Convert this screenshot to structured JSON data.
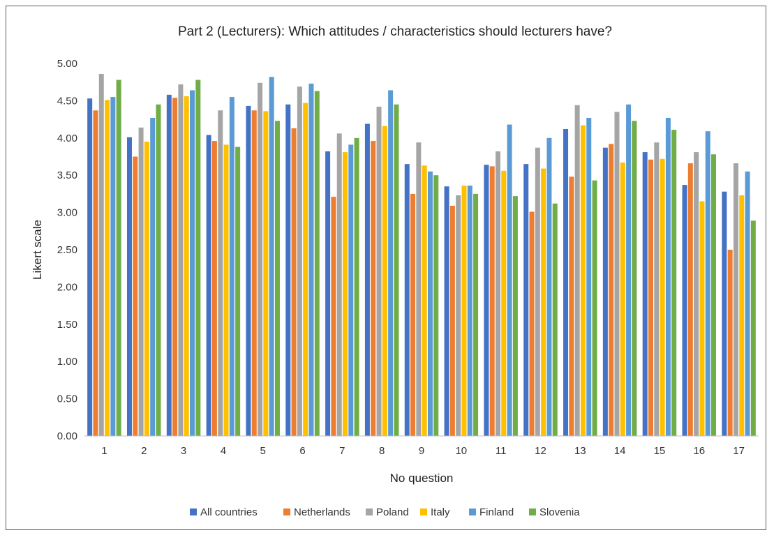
{
  "chart_data": {
    "type": "bar",
    "title": "Part 2 (Lecturers): Which attitudes / characteristics should lecturers have?",
    "xlabel": "No question",
    "ylabel": "Likert scale",
    "ylim": [
      0,
      5
    ],
    "y_ticks": [
      "0.00",
      "0.50",
      "1.00",
      "1.50",
      "2.00",
      "2.50",
      "3.00",
      "3.50",
      "4.00",
      "4.50",
      "5.00"
    ],
    "grid": false,
    "legend_position": "bottom",
    "categories": [
      "1",
      "2",
      "3",
      "4",
      "5",
      "6",
      "7",
      "8",
      "9",
      "10",
      "11",
      "12",
      "13",
      "14",
      "15",
      "16",
      "17"
    ],
    "series": [
      {
        "name": "All countries",
        "color": "#4472C4",
        "values": [
          4.53,
          4.01,
          4.58,
          4.04,
          4.43,
          4.45,
          3.82,
          4.19,
          3.65,
          3.35,
          3.64,
          3.65,
          4.12,
          3.87,
          3.81,
          3.37,
          3.28
        ]
      },
      {
        "name": "Netherlands",
        "color": "#ED7D31",
        "values": [
          4.37,
          3.75,
          4.54,
          3.96,
          4.37,
          4.13,
          3.21,
          3.96,
          3.25,
          3.09,
          3.62,
          3.01,
          3.48,
          3.92,
          3.71,
          3.66,
          2.5
        ]
      },
      {
        "name": "Poland",
        "color": "#A5A5A5",
        "values": [
          4.86,
          4.14,
          4.72,
          4.37,
          4.74,
          4.69,
          4.06,
          4.42,
          3.94,
          3.23,
          3.82,
          3.87,
          4.44,
          4.35,
          3.94,
          3.81,
          3.66
        ]
      },
      {
        "name": "Italy",
        "color": "#FFC000",
        "values": [
          4.51,
          3.95,
          4.56,
          3.91,
          4.36,
          4.47,
          3.81,
          4.16,
          3.63,
          3.36,
          3.56,
          3.59,
          4.17,
          3.67,
          3.72,
          3.15,
          3.23
        ]
      },
      {
        "name": "Finland",
        "color": "#5B9BD5",
        "values": [
          4.55,
          4.27,
          4.64,
          4.55,
          4.82,
          4.73,
          3.91,
          4.64,
          3.55,
          3.36,
          4.18,
          4.0,
          4.27,
          4.45,
          4.27,
          4.09,
          3.55
        ]
      },
      {
        "name": "Slovenia",
        "color": "#70AD47",
        "values": [
          4.78,
          4.45,
          4.78,
          3.88,
          4.23,
          4.63,
          4.0,
          4.45,
          3.5,
          3.25,
          3.22,
          3.12,
          3.43,
          4.23,
          4.11,
          3.78,
          2.89
        ]
      }
    ]
  }
}
